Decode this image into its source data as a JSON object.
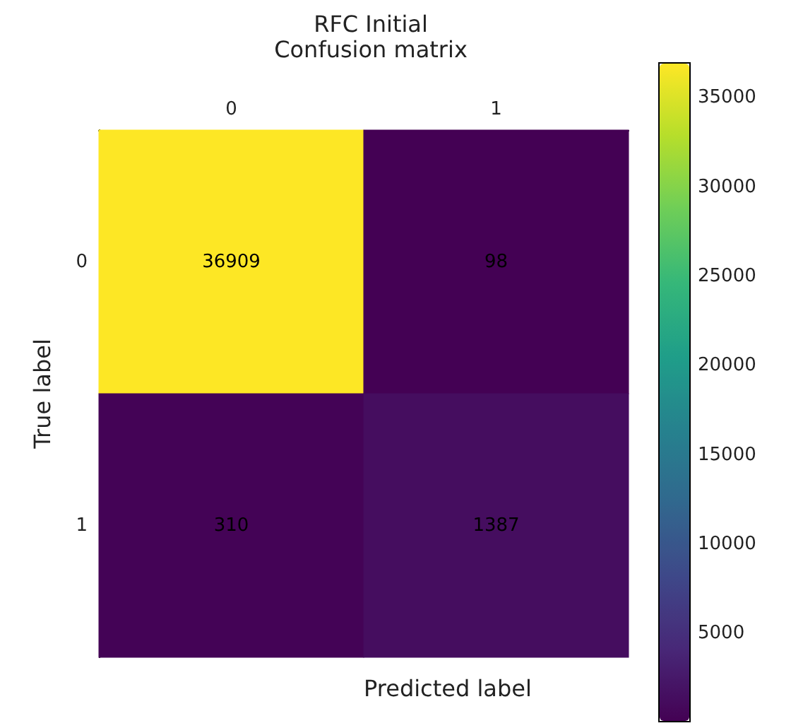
{
  "chart_data": {
    "type": "heatmap",
    "title": "RFC Initial",
    "subtitle": "Confusion matrix",
    "xlabel": "Predicted label",
    "ylabel": "True label",
    "categories": [
      "0",
      "1"
    ],
    "y_categories": [
      "0",
      "1"
    ],
    "cells": [
      [
        36909,
        98
      ],
      [
        310,
        1387
      ]
    ],
    "clim": [
      98,
      36909
    ],
    "cticks": [
      5000,
      10000,
      15000,
      20000,
      25000,
      30000,
      35000
    ],
    "data_labels": true
  }
}
